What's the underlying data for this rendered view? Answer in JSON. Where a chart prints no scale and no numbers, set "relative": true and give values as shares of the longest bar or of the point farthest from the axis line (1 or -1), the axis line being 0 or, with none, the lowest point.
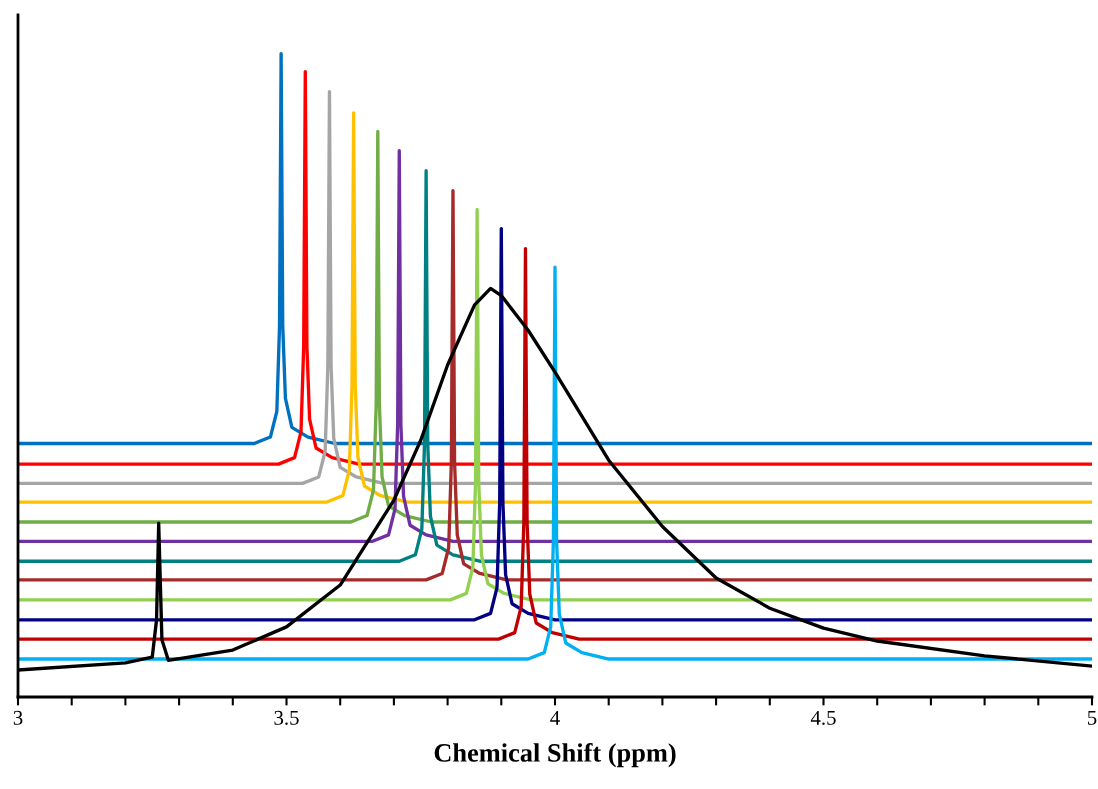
{
  "chart_data": {
    "type": "line",
    "relative": true,
    "xlabel": "Chemical Shift (ppm)",
    "xlim": [
      3,
      5
    ],
    "xticks": [
      3,
      {
        "value": 3.1,
        "label": null
      },
      {
        "value": 3.2,
        "label": null
      },
      {
        "value": 3.3,
        "label": null
      },
      {
        "value": 3.4,
        "label": null
      },
      3.5,
      {
        "value": 3.6,
        "label": null
      },
      {
        "value": 3.7,
        "label": null
      },
      {
        "value": 3.8,
        "label": null
      },
      {
        "value": 3.9,
        "label": null
      },
      4,
      {
        "value": 4.1,
        "label": null
      },
      {
        "value": 4.2,
        "label": null
      },
      {
        "value": 4.3,
        "label": null
      },
      {
        "value": 4.4,
        "label": null
      },
      4.5,
      {
        "value": 4.6,
        "label": null
      },
      {
        "value": 4.7,
        "label": null
      },
      {
        "value": 4.8,
        "label": null
      },
      {
        "value": 4.9,
        "label": null
      },
      5
    ],
    "grid": false,
    "marker": "none",
    "line_style": "solid",
    "series": [
      {
        "color": "#0070c0",
        "x": [
          3,
          3.44,
          3.47,
          3.482,
          3.487,
          3.49,
          3.493,
          3.498,
          3.51,
          3.54,
          3.59,
          5
        ],
        "values": [
          0.394,
          0.394,
          0.404,
          0.444,
          0.576,
          1.0,
          0.576,
          0.464,
          0.419,
          0.404,
          0.394,
          0.394
        ]
      },
      {
        "color": "#ff0000",
        "x": [
          3,
          3.485,
          3.515,
          3.527,
          3.532,
          3.535,
          3.538,
          3.543,
          3.555,
          3.585,
          3.635,
          5
        ],
        "values": [
          0.362,
          0.362,
          0.372,
          0.412,
          0.545,
          0.972,
          0.545,
          0.432,
          0.387,
          0.372,
          0.362,
          0.362
        ]
      },
      {
        "color": "#a5a5a5",
        "x": [
          3,
          3.53,
          3.56,
          3.572,
          3.577,
          3.58,
          3.583,
          3.588,
          3.6,
          3.63,
          3.68,
          5
        ],
        "values": [
          0.332,
          0.332,
          0.342,
          0.382,
          0.515,
          0.941,
          0.515,
          0.402,
          0.357,
          0.342,
          0.332,
          0.332
        ]
      },
      {
        "color": "#ffc000",
        "x": [
          3,
          3.575,
          3.605,
          3.617,
          3.622,
          3.625,
          3.628,
          3.633,
          3.645,
          3.675,
          3.725,
          5
        ],
        "values": [
          0.303,
          0.303,
          0.313,
          0.353,
          0.485,
          0.908,
          0.485,
          0.373,
          0.328,
          0.313,
          0.303,
          0.303
        ]
      },
      {
        "color": "#70ad47",
        "x": [
          3,
          3.62,
          3.65,
          3.662,
          3.667,
          3.67,
          3.673,
          3.678,
          3.69,
          3.72,
          3.77,
          5
        ],
        "values": [
          0.272,
          0.272,
          0.282,
          0.322,
          0.454,
          0.879,
          0.454,
          0.342,
          0.297,
          0.282,
          0.272,
          0.272
        ]
      },
      {
        "color": "#7030a0",
        "x": [
          3,
          3.66,
          3.69,
          3.702,
          3.707,
          3.71,
          3.713,
          3.718,
          3.73,
          3.76,
          3.81,
          5
        ],
        "values": [
          0.242,
          0.242,
          0.252,
          0.292,
          0.424,
          0.849,
          0.424,
          0.312,
          0.267,
          0.252,
          0.242,
          0.242
        ]
      },
      {
        "color": "#008080",
        "x": [
          3,
          3.71,
          3.74,
          3.752,
          3.757,
          3.76,
          3.763,
          3.768,
          3.78,
          3.81,
          3.86,
          5
        ],
        "values": [
          0.211,
          0.211,
          0.221,
          0.261,
          0.393,
          0.818,
          0.393,
          0.281,
          0.236,
          0.221,
          0.211,
          0.211
        ]
      },
      {
        "color": "#a52a2a",
        "x": [
          3,
          3.76,
          3.79,
          3.802,
          3.807,
          3.81,
          3.813,
          3.818,
          3.83,
          3.86,
          3.91,
          5
        ],
        "values": [
          0.182,
          0.182,
          0.192,
          0.232,
          0.364,
          0.787,
          0.364,
          0.252,
          0.207,
          0.192,
          0.182,
          0.182
        ]
      },
      {
        "color": "#92d050",
        "x": [
          3,
          3.805,
          3.835,
          3.847,
          3.852,
          3.855,
          3.858,
          3.863,
          3.875,
          3.905,
          3.955,
          5
        ],
        "values": [
          0.151,
          0.151,
          0.161,
          0.201,
          0.333,
          0.758,
          0.333,
          0.221,
          0.176,
          0.161,
          0.151,
          0.151
        ]
      },
      {
        "color": "#000080",
        "x": [
          3,
          3.85,
          3.88,
          3.892,
          3.897,
          3.9,
          3.903,
          3.908,
          3.92,
          3.95,
          4.0,
          5
        ],
        "values": [
          0.12,
          0.12,
          0.13,
          0.17,
          0.302,
          0.728,
          0.302,
          0.19,
          0.145,
          0.13,
          0.12,
          0.12
        ]
      },
      {
        "color": "#c00000",
        "x": [
          3,
          3.895,
          3.925,
          3.937,
          3.942,
          3.945,
          3.948,
          3.953,
          3.965,
          3.995,
          4.045,
          5
        ],
        "values": [
          0.09,
          0.09,
          0.1,
          0.14,
          0.272,
          0.697,
          0.272,
          0.16,
          0.115,
          0.1,
          0.09,
          0.09
        ]
      },
      {
        "color": "#00b0f0",
        "x": [
          3,
          3.95,
          3.98,
          3.992,
          3.997,
          4.0,
          4.003,
          4.008,
          4.02,
          4.05,
          4.1,
          5
        ],
        "values": [
          0.059,
          0.059,
          0.069,
          0.109,
          0.242,
          0.668,
          0.242,
          0.129,
          0.084,
          0.069,
          0.059,
          0.059
        ]
      },
      {
        "color": "#000000",
        "x": [
          3,
          3.2,
          3.25,
          3.258,
          3.262,
          3.268,
          3.28,
          3.4,
          3.5,
          3.6,
          3.7,
          3.75,
          3.8,
          3.85,
          3.88,
          3.9,
          3.95,
          4.0,
          4.1,
          4.2,
          4.3,
          4.4,
          4.5,
          4.6,
          4.8,
          5
        ],
        "values": [
          0.042,
          0.053,
          0.062,
          0.12,
          0.27,
          0.089,
          0.057,
          0.073,
          0.109,
          0.174,
          0.306,
          0.399,
          0.516,
          0.609,
          0.635,
          0.624,
          0.57,
          0.505,
          0.368,
          0.265,
          0.185,
          0.138,
          0.107,
          0.087,
          0.064,
          0.048
        ]
      }
    ]
  }
}
